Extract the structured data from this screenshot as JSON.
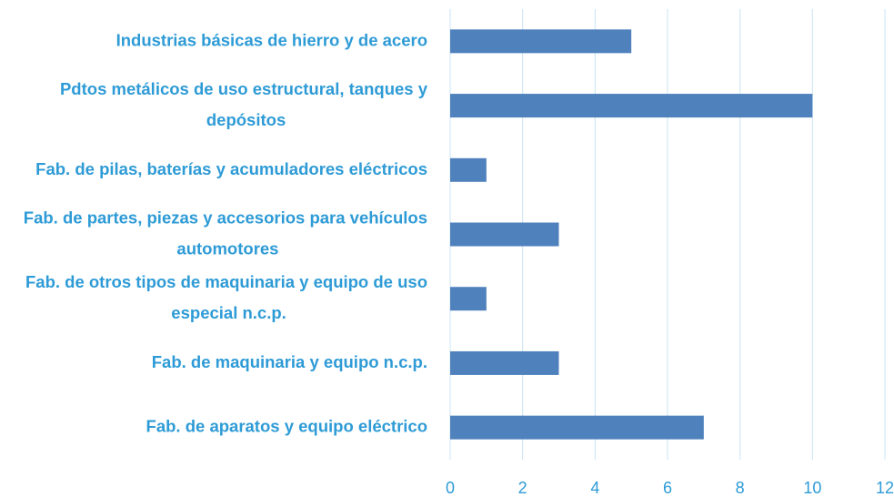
{
  "chart_data": {
    "type": "barh",
    "categories": [
      "Industrias básicas de hierro y de acero",
      "Pdtos metálicos de uso estructural, tanques y depósitos",
      "Fab. de pilas, baterías y acumuladores eléctricos",
      "Fab. de partes, piezas y accesorios para vehículos automotores",
      "Fab. de otros tipos de maquinaria y equipo de uso especial n.c.p.",
      "Fab. de maquinaria y equipo n.c.p.",
      "Fab. de aparatos y equipo eléctrico"
    ],
    "values": [
      5,
      10,
      1,
      3,
      1,
      3,
      7
    ],
    "color": "#4f81bd",
    "xlim": [
      0,
      12
    ],
    "xticks": [
      0,
      2,
      4,
      6,
      8,
      10,
      12
    ],
    "grid": true
  }
}
